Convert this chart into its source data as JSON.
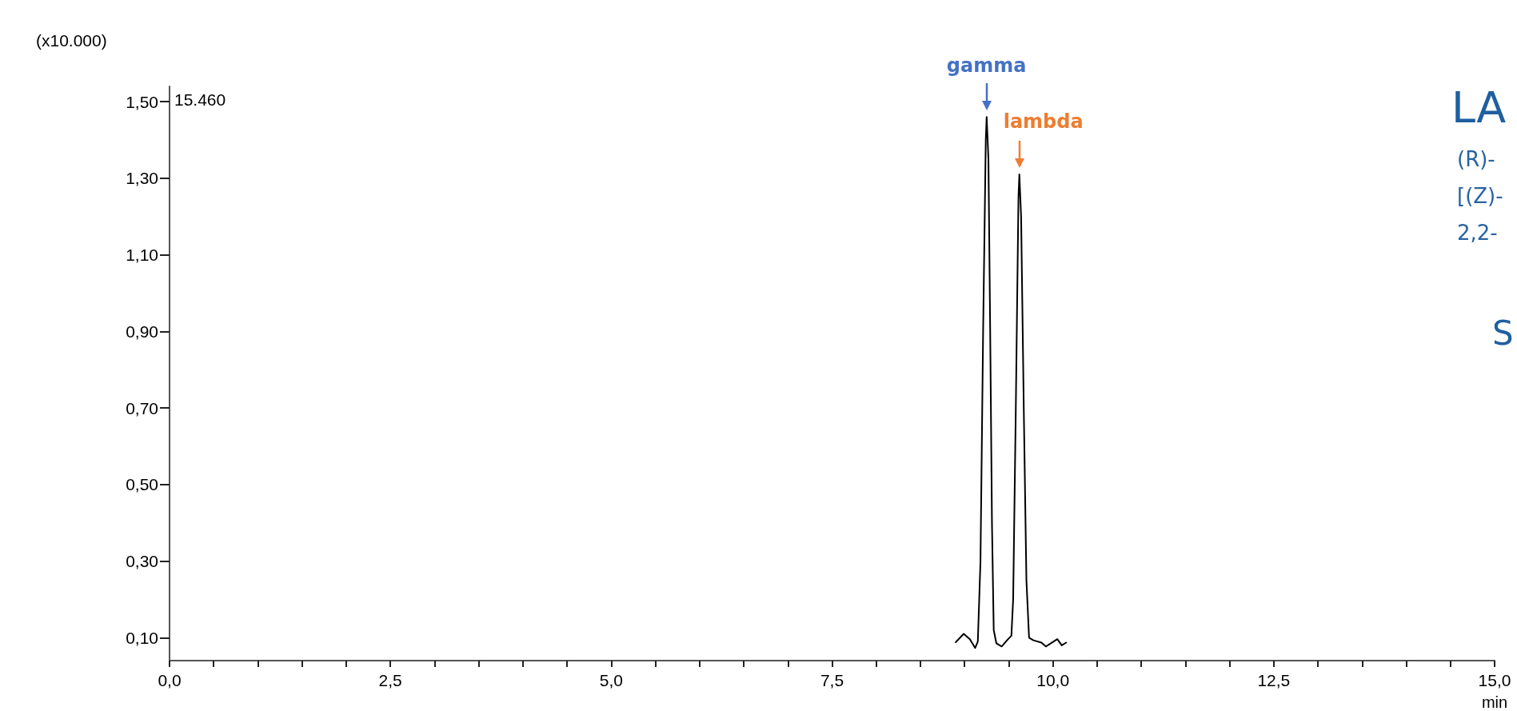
{
  "chart_data": {
    "type": "line",
    "xlabel": "min",
    "x": [
      8.9,
      8.99,
      9.06,
      9.12,
      9.15,
      9.18,
      9.21,
      9.24,
      9.25,
      9.27,
      9.29,
      9.31,
      9.33,
      9.36,
      9.42,
      9.48,
      9.53,
      9.55,
      9.58,
      9.61,
      9.62,
      9.64,
      9.67,
      9.7,
      9.73,
      9.78,
      9.87,
      9.92,
      10.05,
      10.1,
      10.15
    ],
    "series": [
      {
        "color": "#000000",
        "values": [
          0.088,
          0.11,
          0.096,
          0.073,
          0.09,
          0.3,
          0.9,
          1.4,
          1.46,
          1.35,
          0.9,
          0.4,
          0.12,
          0.085,
          0.077,
          0.093,
          0.105,
          0.2,
          0.7,
          1.25,
          1.31,
          1.2,
          0.7,
          0.25,
          0.1,
          0.093,
          0.087,
          0.077,
          0.096,
          0.08,
          0.087
        ]
      }
    ],
    "xlim": [
      0,
      15
    ],
    "xticks": [
      {
        "value": 0,
        "label": "0,0"
      },
      {
        "value": 0.5,
        "label": null
      },
      {
        "value": 1,
        "label": null
      },
      {
        "value": 1.5,
        "label": null
      },
      {
        "value": 2,
        "label": null
      },
      {
        "value": 2.5,
        "label": "2,5"
      },
      {
        "value": 3,
        "label": null
      },
      {
        "value": 3.5,
        "label": null
      },
      {
        "value": 4,
        "label": null
      },
      {
        "value": 4.5,
        "label": null
      },
      {
        "value": 5,
        "label": "5,0"
      },
      {
        "value": 5.5,
        "label": null
      },
      {
        "value": 6,
        "label": null
      },
      {
        "value": 6.5,
        "label": null
      },
      {
        "value": 7,
        "label": null
      },
      {
        "value": 7.5,
        "label": "7,5"
      },
      {
        "value": 8,
        "label": null
      },
      {
        "value": 8.5,
        "label": null
      },
      {
        "value": 9,
        "label": null
      },
      {
        "value": 9.5,
        "label": null
      },
      {
        "value": 10,
        "label": "10,0"
      },
      {
        "value": 10.5,
        "label": null
      },
      {
        "value": 11,
        "label": null
      },
      {
        "value": 11.5,
        "label": null
      },
      {
        "value": 12,
        "label": null
      },
      {
        "value": 12.5,
        "label": "12,5"
      },
      {
        "value": 13,
        "label": null
      },
      {
        "value": 13.5,
        "label": null
      },
      {
        "value": 14,
        "label": null
      },
      {
        "value": 14.5,
        "label": null
      },
      {
        "value": 15,
        "label": "15,0"
      }
    ],
    "ylim": [
      0.04,
      1.54
    ],
    "yticks": [
      {
        "value": 0.1,
        "label": "0,10"
      },
      {
        "value": 0.3,
        "label": "0,30"
      },
      {
        "value": 0.5,
        "label": "0,50"
      },
      {
        "value": 0.7,
        "label": "0,70"
      },
      {
        "value": 0.9,
        "label": "0,90"
      },
      {
        "value": 1.1,
        "label": "1,10"
      },
      {
        "value": 1.3,
        "label": "1,30"
      },
      {
        "value": 1.5,
        "label": "1,50"
      }
    ],
    "grid": false,
    "marker": "none",
    "line_style": "solid",
    "annotations": [
      {
        "text": "gamma",
        "x": 9.25,
        "y": 1.46
      },
      {
        "text": "lambda",
        "x": 9.62,
        "y": 1.31
      },
      "(x10.000)",
      "15.460",
      "LA",
      "(R)-",
      "[(Z)-",
      "2,2-",
      "S"
    ]
  }
}
